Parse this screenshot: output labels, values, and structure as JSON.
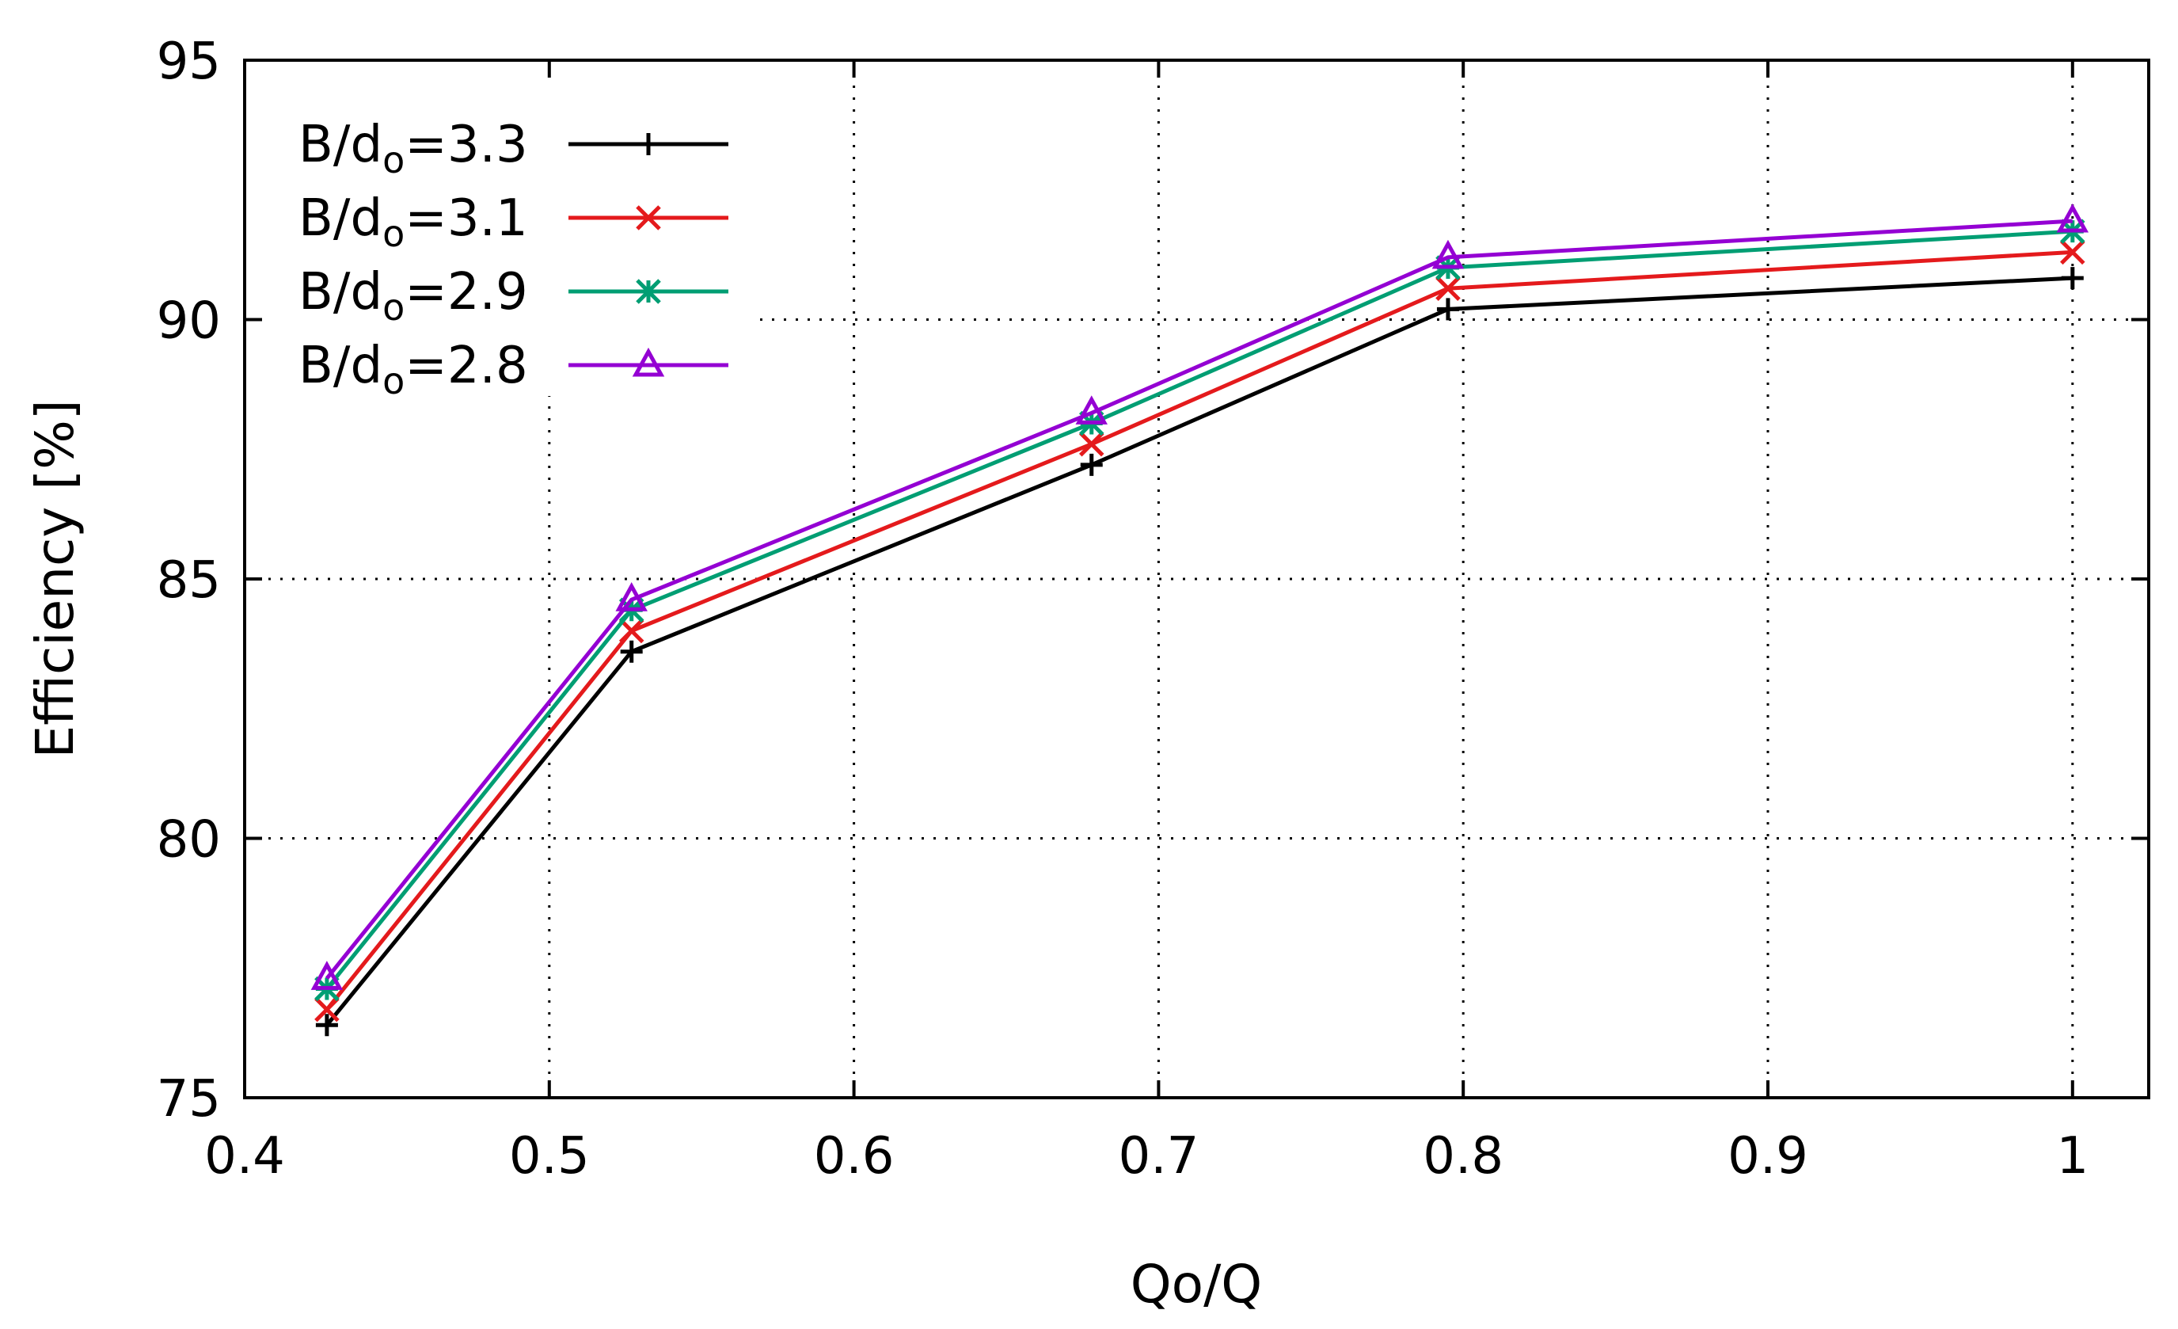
{
  "chart_data": {
    "type": "line",
    "title": "",
    "xlabel": "Qo/Q",
    "ylabel": "Efficiency [%]",
    "xlim": [
      0.4,
      1.025
    ],
    "ylim": [
      75,
      95
    ],
    "xticks": [
      0.4,
      0.5,
      0.6,
      0.7,
      0.8,
      0.9,
      1.0
    ],
    "xtick_labels": [
      "0.4",
      "0.5",
      "0.6",
      "0.7",
      "0.8",
      "0.9",
      "1"
    ],
    "yticks": [
      75,
      80,
      85,
      90,
      95
    ],
    "ytick_labels": [
      "75",
      "80",
      "85",
      "90",
      "95"
    ],
    "grid": true,
    "legend_position": "top-left",
    "x": [
      0.427,
      0.527,
      0.678,
      0.795,
      1.0
    ],
    "series": [
      {
        "name": "B/do=3.3",
        "label_main": "B/d",
        "label_sub": "o",
        "label_tail": "=3.3",
        "color": "#000000",
        "marker": "plus",
        "values": [
          76.4,
          83.6,
          87.2,
          90.2,
          90.8
        ]
      },
      {
        "name": "B/do=3.1",
        "label_main": "B/d",
        "label_sub": "o",
        "label_tail": "=3.1",
        "color": "#e41a1c",
        "marker": "cross",
        "values": [
          76.7,
          84.0,
          87.6,
          90.6,
          91.3
        ]
      },
      {
        "name": "B/do=2.9",
        "label_main": "B/d",
        "label_sub": "o",
        "label_tail": "=2.9",
        "color": "#009e73",
        "marker": "star",
        "values": [
          77.1,
          84.4,
          88.0,
          91.0,
          91.7
        ]
      },
      {
        "name": "B/do=2.8",
        "label_main": "B/d",
        "label_sub": "o",
        "label_tail": "=2.8",
        "color": "#9400d3",
        "marker": "triangle",
        "values": [
          77.3,
          84.6,
          88.2,
          91.2,
          91.9
        ]
      }
    ]
  }
}
